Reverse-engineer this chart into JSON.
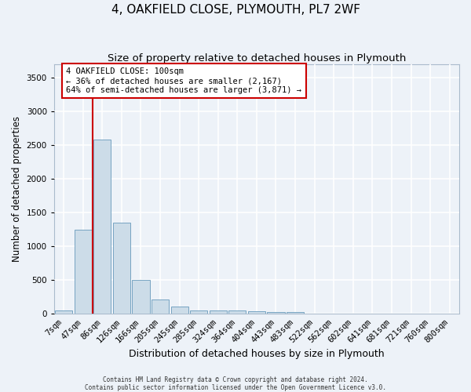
{
  "title": "4, OAKFIELD CLOSE, PLYMOUTH, PL7 2WF",
  "subtitle": "Size of property relative to detached houses in Plymouth",
  "xlabel": "Distribution of detached houses by size in Plymouth",
  "ylabel": "Number of detached properties",
  "footer_line1": "Contains HM Land Registry data © Crown copyright and database right 2024.",
  "footer_line2": "Contains public sector information licensed under the Open Government Licence v3.0.",
  "bar_labels": [
    "7sqm",
    "47sqm",
    "86sqm",
    "126sqm",
    "166sqm",
    "205sqm",
    "245sqm",
    "285sqm",
    "324sqm",
    "364sqm",
    "404sqm",
    "443sqm",
    "483sqm",
    "522sqm",
    "562sqm",
    "602sqm",
    "641sqm",
    "681sqm",
    "721sqm",
    "760sqm",
    "800sqm"
  ],
  "bar_values": [
    50,
    1250,
    2580,
    1350,
    500,
    220,
    110,
    55,
    55,
    50,
    40,
    30,
    25,
    10,
    8,
    6,
    5,
    4,
    3,
    2,
    1
  ],
  "bar_color": "#ccdce8",
  "bar_edge_color": "#6699bb",
  "background_color": "#edf2f8",
  "grid_color": "#ffffff",
  "vline_x": 1.5,
  "vline_color": "#cc0000",
  "annotation_text": "4 OAKFIELD CLOSE: 100sqm\n← 36% of detached houses are smaller (2,167)\n64% of semi-detached houses are larger (3,871) →",
  "annotation_box_color": "#cc0000",
  "ylim": [
    0,
    3700
  ],
  "yticks": [
    0,
    500,
    1000,
    1500,
    2000,
    2500,
    3000,
    3500
  ],
  "title_fontsize": 11,
  "subtitle_fontsize": 9.5,
  "xlabel_fontsize": 9,
  "ylabel_fontsize": 8.5,
  "tick_fontsize": 7.5,
  "annotation_fontsize": 7.5,
  "footer_fontsize": 5.5
}
